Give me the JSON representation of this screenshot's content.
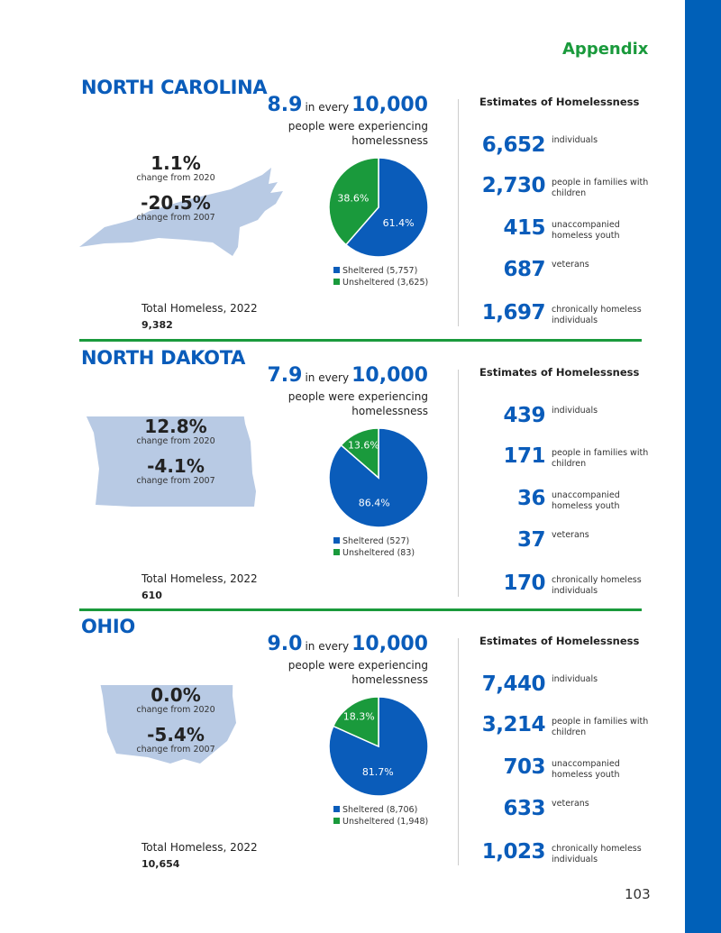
{
  "header": {
    "title": "Appendix"
  },
  "page_number": "103",
  "colors": {
    "blue": "#0a5cba",
    "green": "#1a9a3c",
    "map": "#b8cae4"
  },
  "common": {
    "in_every": "in every",
    "per": "10,000",
    "sub1": "people were experiencing",
    "sub2": "homelessness",
    "change_2020": "change from 2020",
    "change_2007": "change from 2007",
    "total_label": "Total Homeless, 2022",
    "estimates_heading": "Estimates of Homelessness",
    "stat_labels": [
      "individuals",
      "people in families with children",
      "unaccompanied homeless youth",
      "veterans",
      "chronically homeless individuals"
    ]
  },
  "states": [
    {
      "name": "NORTH CAROLINA",
      "rate": "8.9",
      "change_2020": "1.1%",
      "change_2007": "-20.5%",
      "total": "9,382",
      "sheltered_pct": 61.4,
      "unsheltered_pct": 38.6,
      "sheltered_label": "61.4%",
      "unsheltered_label": "38.6%",
      "legend_sheltered": "Sheltered (5,757)",
      "legend_unsheltered": "Unsheltered (3,625)",
      "stats": [
        "6,652",
        "2,730",
        "415",
        "687",
        "1,697"
      ]
    },
    {
      "name": "NORTH DAKOTA",
      "rate": "7.9",
      "change_2020": "12.8%",
      "change_2007": "-4.1%",
      "total": "610",
      "sheltered_pct": 86.4,
      "unsheltered_pct": 13.6,
      "sheltered_label": "86.4%",
      "unsheltered_label": "13.6%",
      "legend_sheltered": "Sheltered (527)",
      "legend_unsheltered": "Unsheltered (83)",
      "stats": [
        "439",
        "171",
        "36",
        "37",
        "170"
      ]
    },
    {
      "name": "OHIO",
      "rate": "9.0",
      "change_2020": "0.0%",
      "change_2007": "-5.4%",
      "total": "10,654",
      "sheltered_pct": 81.7,
      "unsheltered_pct": 18.3,
      "sheltered_label": "81.7%",
      "unsheltered_label": "18.3%",
      "legend_sheltered": "Sheltered (8,706)",
      "legend_unsheltered": "Unsheltered (1,948)",
      "stats": [
        "7,440",
        "3,214",
        "703",
        "633",
        "1,023"
      ]
    }
  ]
}
